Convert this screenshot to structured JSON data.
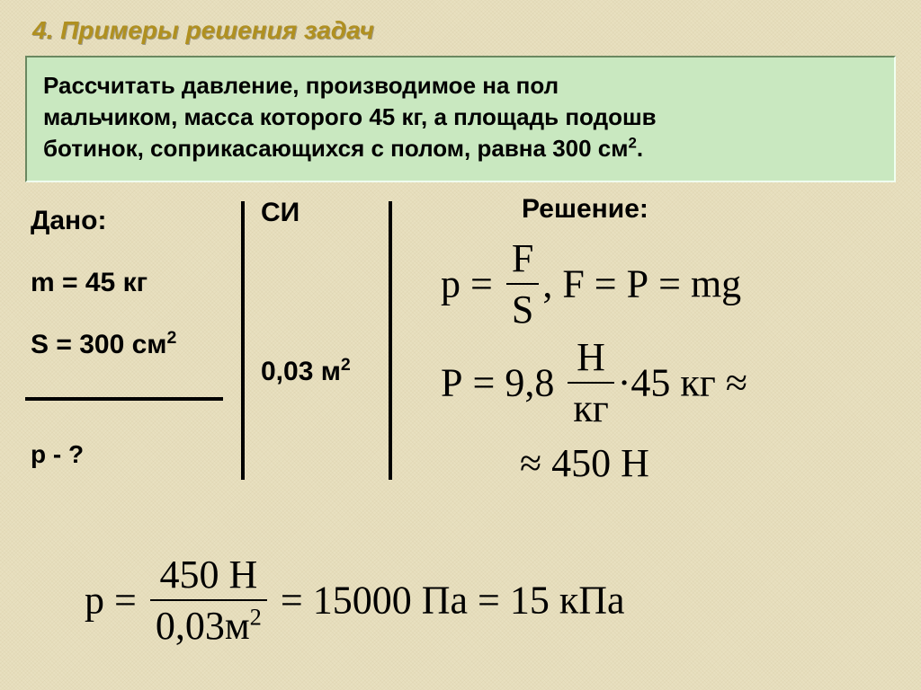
{
  "title": "4. Примеры решения задач",
  "problem": {
    "line1": "Рассчитать давление, производимое на пол",
    "line2": "мальчиком, масса которого 45 кг, а площадь подошв",
    "line3": "ботинок, соприкасающихся с полом, равна 300 см",
    "superscript": "2",
    "trail": "."
  },
  "given": {
    "label": "Дано:",
    "mass": "m = 45 кг",
    "area_label": "S = 300 см",
    "area_sup": "2",
    "ask": "p - ?"
  },
  "si": {
    "label": "СИ",
    "area_value": "0,03 м",
    "area_sup": "2"
  },
  "solution": {
    "label": "Решение:",
    "f1_p": "p",
    "f1_eq": " = ",
    "f1_num": "F",
    "f1_den": "S",
    "f1_comma": ",",
    "f1_rhs_F": "F",
    "f1_rhs_eq1": " = ",
    "f1_rhs_P": "P",
    "f1_rhs_eq2": " = ",
    "f1_rhs_mg": "mg",
    "f2_P": "P",
    "f2_eq": " = ",
    "f2_val": "9,8",
    "f2_num": "Н",
    "f2_den": "кг",
    "f2_dot": "·",
    "f2_mass": "45 кг",
    "f2_approx": " ≈",
    "f3_approx": "≈ ",
    "f3_val": "450 Н",
    "f4_p": "p",
    "f4_eq": " = ",
    "f4_num": "450 Н",
    "f4_den_val": "0,03м",
    "f4_den_sup": "2",
    "f4_res_eq": " = ",
    "f4_res1": "15000 Па",
    "f4_res_eq2": " = ",
    "f4_res2": "15 кПа"
  },
  "colors": {
    "background": "#e8e0c0",
    "title": "#b09020",
    "box_bg": "#c9e8c0",
    "text": "#000000"
  },
  "fonts": {
    "body": "Arial, sans-serif",
    "math": "Times New Roman, serif",
    "title_size_pt": 21,
    "problem_size_pt": 20,
    "given_size_pt": 22,
    "formula_size_pt": 33
  }
}
